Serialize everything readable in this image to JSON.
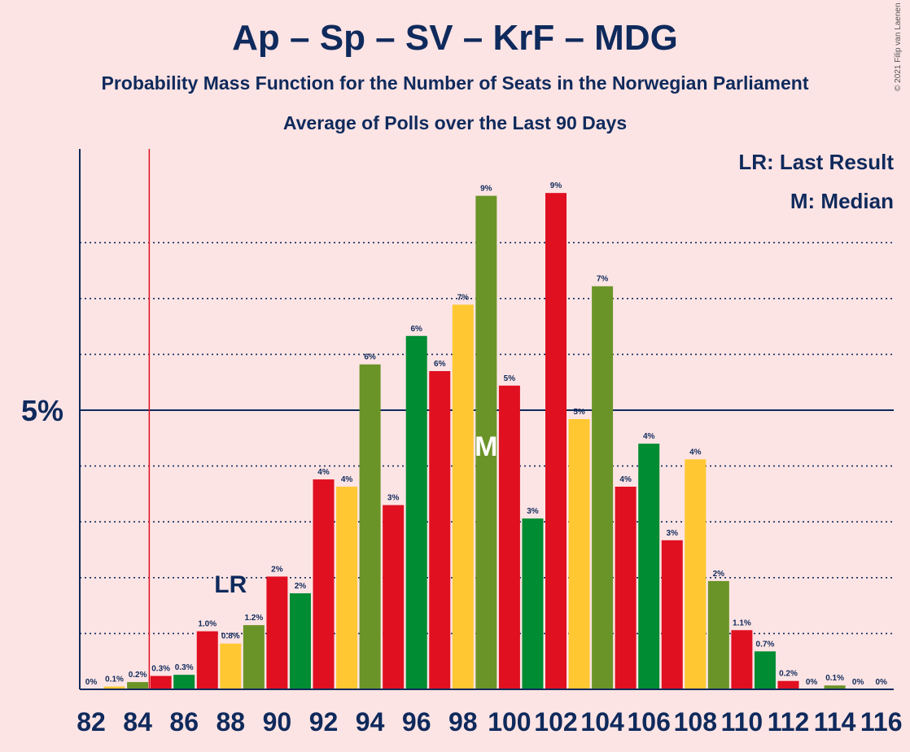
{
  "title": "Ap – Sp – SV – KrF – MDG",
  "subtitle": "Probability Mass Function for the Number of Seats in the Norwegian Parliament",
  "subtitle2": "Average of Polls over the Last 90 Days",
  "copyright": "© 2021 Filip van Laenen",
  "legend": {
    "last_result": "LR: Last Result",
    "median": "M: Median"
  },
  "colors": {
    "background": "#fde4e4",
    "text": "#0f2a5c",
    "red": "#e01020",
    "yellow": "#ffc832",
    "olive": "#6b9428",
    "green": "#008c32",
    "lr_line": "#e01020"
  },
  "chart_data": {
    "type": "bar",
    "title": "Ap – Sp – SV – KrF – MDG",
    "x_tick_labels": [
      "82",
      "84",
      "86",
      "88",
      "90",
      "92",
      "94",
      "96",
      "98",
      "100",
      "102",
      "104",
      "106",
      "108",
      "110",
      "112",
      "114",
      "116"
    ],
    "y_tick_label": "5%",
    "ylim": [
      0,
      9.7
    ],
    "gridlines": [
      1,
      2,
      3,
      4,
      5,
      6,
      7,
      8
    ],
    "major_gridline": 5,
    "last_result_seat": 84.5,
    "last_result_label": "LR",
    "median_seat": 99,
    "median_label": "M",
    "bars": [
      {
        "seat": 82,
        "value": 0,
        "label": "0%",
        "color": "green"
      },
      {
        "seat": 83,
        "value": 0.05,
        "label": "0.1%",
        "color": "yellow"
      },
      {
        "seat": 84,
        "value": 0.13,
        "label": "0.2%",
        "color": "olive"
      },
      {
        "seat": 85,
        "value": 0.24,
        "label": "0.3%",
        "color": "red"
      },
      {
        "seat": 86,
        "value": 0.26,
        "label": "0.3%",
        "color": "green"
      },
      {
        "seat": 87,
        "value": 1.04,
        "label": "1.0%",
        "color": "red"
      },
      {
        "seat": 88,
        "value": 0.82,
        "label": "0.8%",
        "color": "yellow"
      },
      {
        "seat": 89,
        "value": 1.15,
        "label": "1.2%",
        "color": "olive"
      },
      {
        "seat": 90,
        "value": 2.02,
        "label": "2%",
        "color": "red"
      },
      {
        "seat": 91,
        "value": 1.72,
        "label": "2%",
        "color": "green"
      },
      {
        "seat": 92,
        "value": 3.76,
        "label": "4%",
        "color": "red"
      },
      {
        "seat": 93,
        "value": 3.63,
        "label": "4%",
        "color": "yellow"
      },
      {
        "seat": 94,
        "value": 5.82,
        "label": "6%",
        "color": "olive"
      },
      {
        "seat": 95,
        "value": 3.3,
        "label": "3%",
        "color": "red"
      },
      {
        "seat": 96,
        "value": 6.33,
        "label": "6%",
        "color": "green"
      },
      {
        "seat": 97,
        "value": 5.7,
        "label": "6%",
        "color": "red"
      },
      {
        "seat": 98,
        "value": 6.89,
        "label": "7%",
        "color": "yellow"
      },
      {
        "seat": 99,
        "value": 8.84,
        "label": "9%",
        "color": "olive"
      },
      {
        "seat": 100,
        "value": 5.44,
        "label": "5%",
        "color": "red"
      },
      {
        "seat": 101,
        "value": 3.06,
        "label": "3%",
        "color": "green"
      },
      {
        "seat": 102,
        "value": 8.89,
        "label": "9%",
        "color": "red"
      },
      {
        "seat": 103,
        "value": 4.84,
        "label": "5%",
        "color": "yellow"
      },
      {
        "seat": 104,
        "value": 7.22,
        "label": "7%",
        "color": "olive"
      },
      {
        "seat": 105,
        "value": 3.63,
        "label": "4%",
        "color": "red"
      },
      {
        "seat": 106,
        "value": 4.4,
        "label": "4%",
        "color": "green"
      },
      {
        "seat": 107,
        "value": 2.67,
        "label": "3%",
        "color": "red"
      },
      {
        "seat": 108,
        "value": 4.12,
        "label": "4%",
        "color": "yellow"
      },
      {
        "seat": 109,
        "value": 1.94,
        "label": "2%",
        "color": "olive"
      },
      {
        "seat": 110,
        "value": 1.06,
        "label": "1.1%",
        "color": "red"
      },
      {
        "seat": 111,
        "value": 0.68,
        "label": "0.7%",
        "color": "green"
      },
      {
        "seat": 112,
        "value": 0.15,
        "label": "0.2%",
        "color": "red"
      },
      {
        "seat": 113,
        "value": 0,
        "label": "0%",
        "color": "yellow"
      },
      {
        "seat": 114,
        "value": 0.07,
        "label": "0.1%",
        "color": "olive"
      },
      {
        "seat": 115,
        "value": 0,
        "label": "0%",
        "color": "red"
      },
      {
        "seat": 116,
        "value": 0,
        "label": "0%",
        "color": "green"
      }
    ]
  }
}
